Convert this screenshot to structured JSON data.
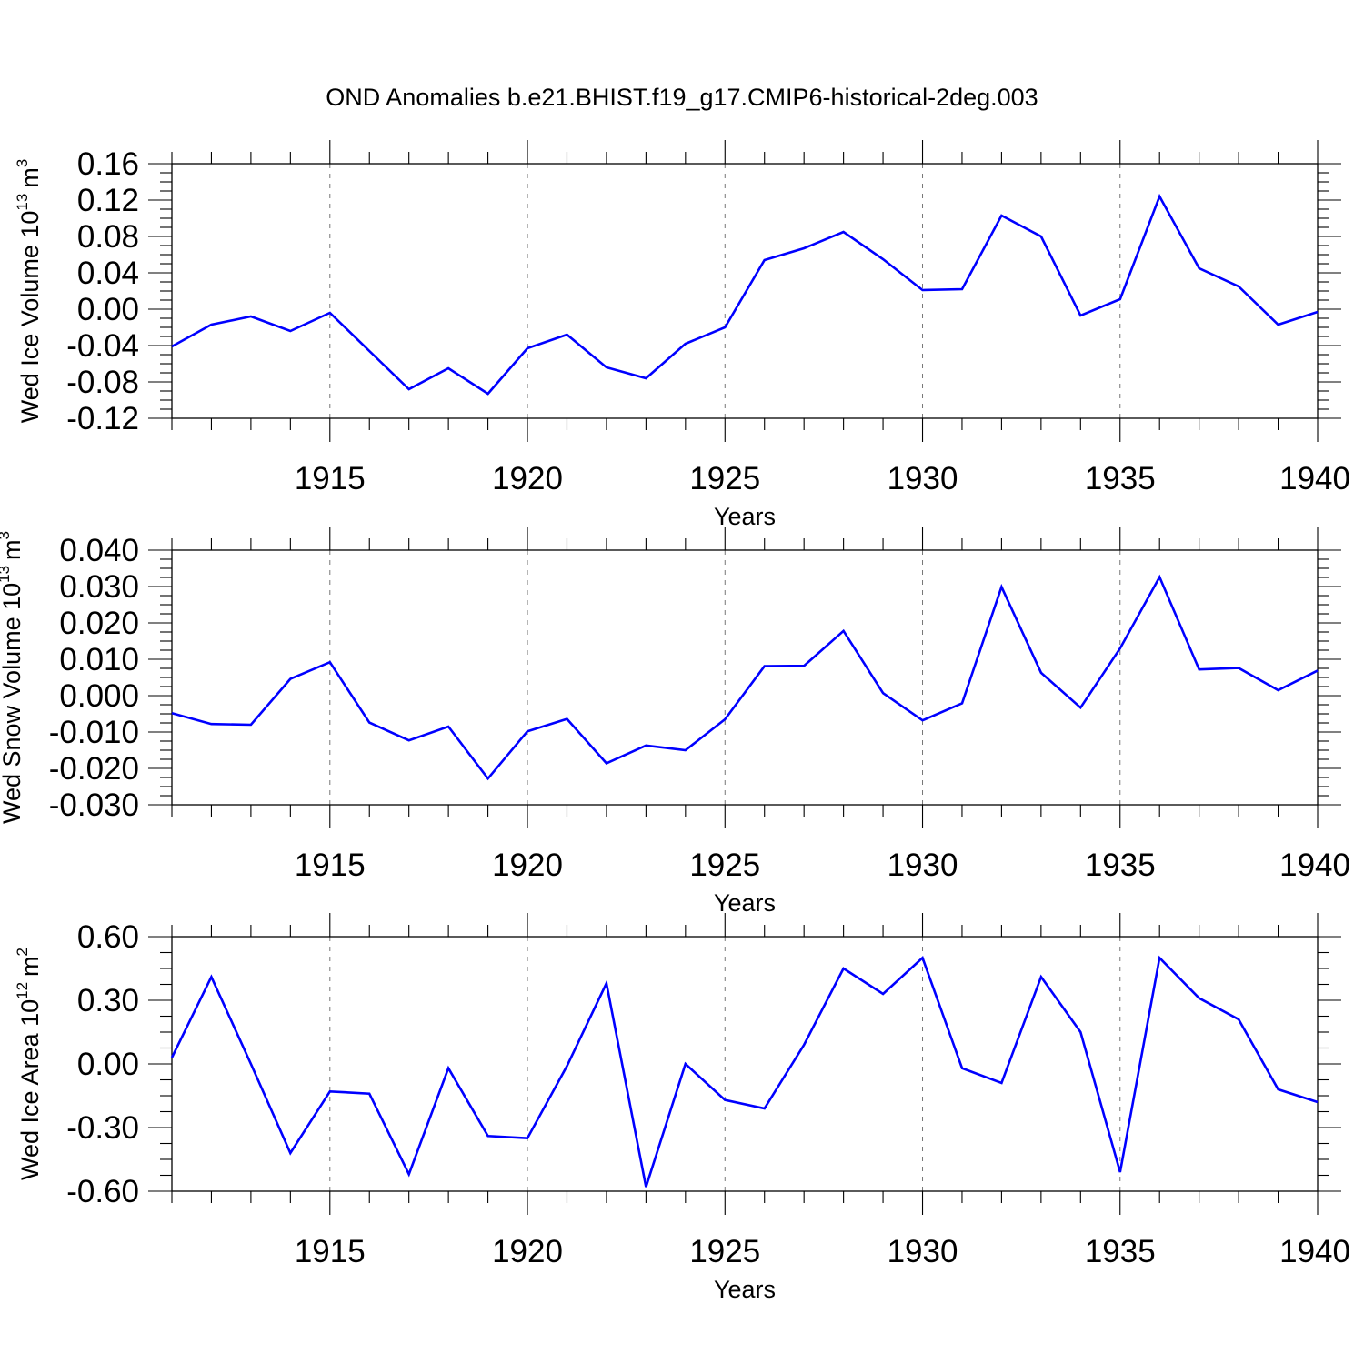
{
  "figure": {
    "title": "OND Anomalies b.e21.BHIST.f19_g17.CMIP6-historical-2deg.003",
    "line_color": "#0000ff"
  },
  "chart_data": [
    {
      "type": "line",
      "name": "wed-ice-volume",
      "title": "OND Anomalies b.e21.BHIST.f19_g17.CMIP6-historical-2deg.003",
      "ylabel": "Wed Ice Volume 10",
      "ylabel_exponent": "13",
      "ylabel_unit": "m",
      "ylabel_unit_exponent": "3",
      "xlabel": "Years",
      "xlim": [
        1911,
        1940
      ],
      "ylim": [
        -0.12,
        0.16
      ],
      "xticks": [
        1915,
        1920,
        1925,
        1930,
        1935,
        1940
      ],
      "xtick_labels": [
        "1915",
        "1920",
        "1925",
        "1930",
        "1935",
        "1940"
      ],
      "yticks": [
        -0.12,
        -0.08,
        -0.04,
        0.0,
        0.04,
        0.08,
        0.12,
        0.16
      ],
      "ytick_labels": [
        "-0.12",
        "-0.08",
        "-0.04",
        "0.00",
        "0.04",
        "0.08",
        "0.12",
        "0.16"
      ],
      "grid": "vertical dashed at major x ticks",
      "x": [
        1911,
        1912,
        1913,
        1914,
        1915,
        1916,
        1917,
        1918,
        1919,
        1920,
        1921,
        1922,
        1923,
        1924,
        1925,
        1926,
        1927,
        1928,
        1929,
        1930,
        1931,
        1932,
        1933,
        1934,
        1935,
        1936,
        1937,
        1938,
        1939,
        1940
      ],
      "values": [
        -0.041,
        -0.017,
        -0.008,
        -0.024,
        -0.004,
        -0.046,
        -0.088,
        -0.065,
        -0.093,
        -0.043,
        -0.028,
        -0.064,
        -0.076,
        -0.038,
        -0.02,
        0.054,
        0.067,
        0.085,
        0.055,
        0.021,
        0.022,
        0.103,
        0.08,
        -0.007,
        0.011,
        0.124,
        0.045,
        0.025,
        -0.017,
        -0.003
      ]
    },
    {
      "type": "line",
      "name": "wed-snow-volume",
      "ylabel": "Wed Snow Volume 10",
      "ylabel_exponent": "13",
      "ylabel_unit": "m",
      "ylabel_unit_exponent": "3",
      "xlabel": "Years",
      "xlim": [
        1911,
        1940
      ],
      "ylim": [
        -0.03,
        0.04
      ],
      "xticks": [
        1915,
        1920,
        1925,
        1930,
        1935,
        1940
      ],
      "xtick_labels": [
        "1915",
        "1920",
        "1925",
        "1930",
        "1935",
        "1940"
      ],
      "yticks": [
        -0.03,
        -0.02,
        -0.01,
        0.0,
        0.01,
        0.02,
        0.03,
        0.04
      ],
      "ytick_labels": [
        "-0.030",
        "-0.020",
        "-0.010",
        "0.000",
        "0.010",
        "0.020",
        "0.030",
        "0.040"
      ],
      "grid": "vertical dashed at major x ticks",
      "x": [
        1911,
        1912,
        1913,
        1914,
        1915,
        1916,
        1917,
        1918,
        1919,
        1920,
        1921,
        1922,
        1923,
        1924,
        1925,
        1926,
        1927,
        1928,
        1929,
        1930,
        1931,
        1932,
        1933,
        1934,
        1935,
        1936,
        1937,
        1938,
        1939,
        1940
      ],
      "values": [
        -0.0048,
        -0.0078,
        -0.008,
        0.0046,
        0.0092,
        -0.0074,
        -0.0123,
        -0.0085,
        -0.0228,
        -0.0098,
        -0.0064,
        -0.0186,
        -0.0137,
        -0.015,
        -0.0065,
        0.0081,
        0.0082,
        0.0178,
        0.0007,
        -0.0068,
        -0.0021,
        0.0299,
        0.0063,
        -0.0033,
        0.013,
        0.0326,
        0.0072,
        0.0076,
        0.0015,
        0.0069
      ]
    },
    {
      "type": "line",
      "name": "wed-ice-area",
      "ylabel": "Wed Ice Area 10",
      "ylabel_exponent": "12",
      "ylabel_unit": "m",
      "ylabel_unit_exponent": "2",
      "xlabel": "Years",
      "xlim": [
        1911,
        1940
      ],
      "ylim": [
        -0.6,
        0.6
      ],
      "xticks": [
        1915,
        1920,
        1925,
        1930,
        1935,
        1940
      ],
      "xtick_labels": [
        "1915",
        "1920",
        "1925",
        "1930",
        "1935",
        "1940"
      ],
      "yticks": [
        -0.6,
        -0.3,
        0.0,
        0.3,
        0.6
      ],
      "ytick_labels": [
        "-0.60",
        "-0.30",
        "0.00",
        "0.30",
        "0.60"
      ],
      "grid": "vertical dashed at major x ticks",
      "x": [
        1911,
        1912,
        1913,
        1914,
        1915,
        1916,
        1917,
        1918,
        1919,
        1920,
        1921,
        1922,
        1923,
        1924,
        1925,
        1926,
        1927,
        1928,
        1929,
        1930,
        1931,
        1932,
        1933,
        1934,
        1935,
        1936,
        1937,
        1938,
        1939,
        1940
      ],
      "values": [
        0.03,
        0.41,
        0.0,
        -0.42,
        -0.13,
        -0.14,
        -0.52,
        -0.02,
        -0.34,
        -0.35,
        -0.01,
        0.38,
        -0.58,
        0.0,
        -0.17,
        -0.21,
        0.09,
        0.45,
        0.33,
        0.5,
        -0.02,
        -0.09,
        0.41,
        0.15,
        -0.51,
        0.5,
        0.31,
        0.21,
        -0.12,
        -0.18
      ]
    }
  ]
}
